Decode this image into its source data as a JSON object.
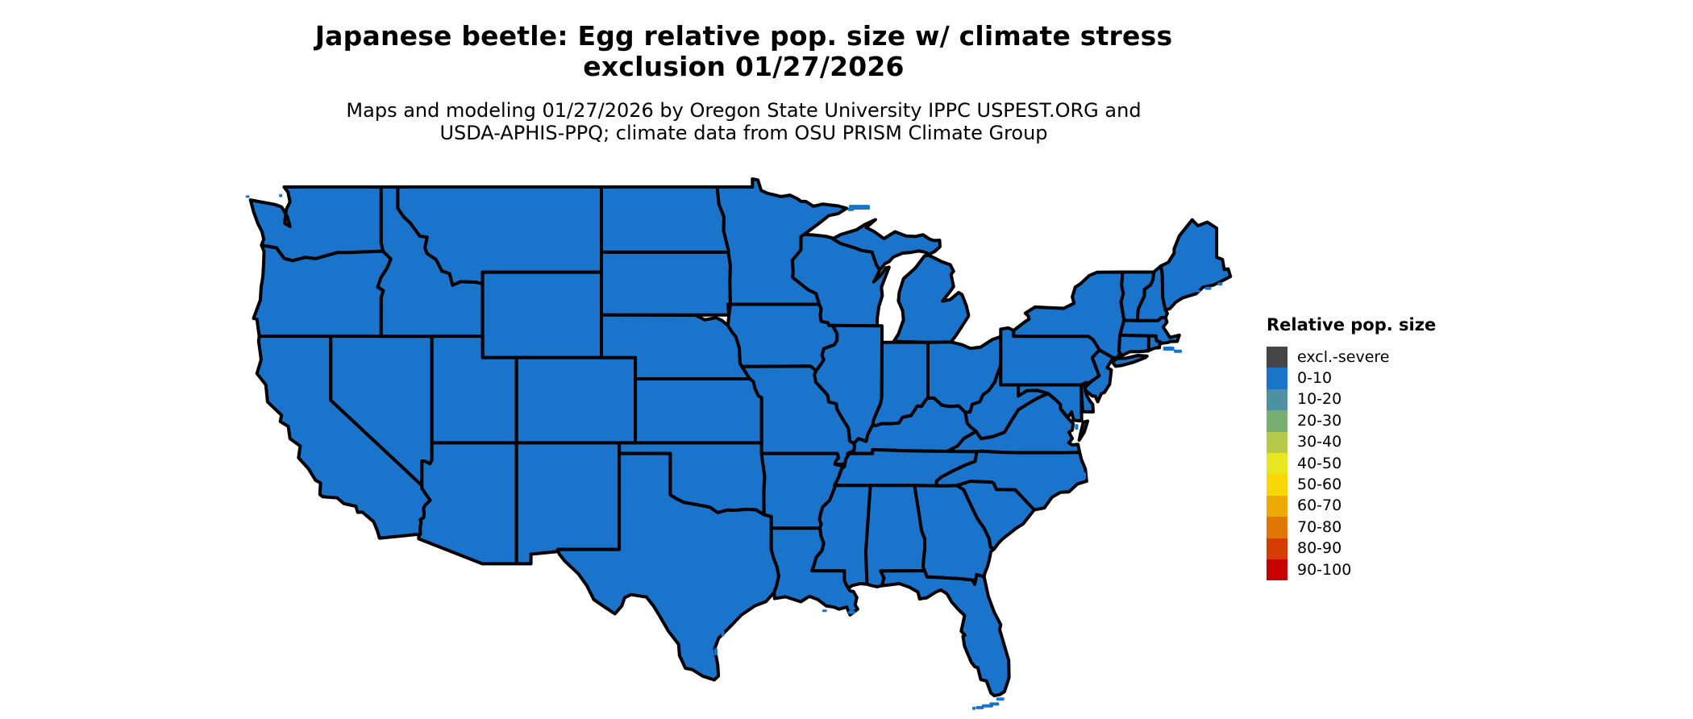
{
  "page": {
    "background": "#ffffff"
  },
  "title": {
    "line1": "Japanese beetle: Egg relative pop. size w/ climate stress",
    "line2": "exclusion 01/27/2026"
  },
  "subtitle": {
    "line1": "Maps and modeling 01/27/2026 by Oregon State University IPPC USPEST.ORG and",
    "line2": "USDA-APHIS-PPQ; climate data from OSU PRISM Climate Group"
  },
  "legend": {
    "title": "Relative pop. size",
    "items": [
      {
        "label": "excl.-severe",
        "color": "#454548"
      },
      {
        "label": "0-10",
        "color": "#1b74cc"
      },
      {
        "label": "10-20",
        "color": "#4e91a0"
      },
      {
        "label": "20-30",
        "color": "#79ae71"
      },
      {
        "label": "30-40",
        "color": "#b6c94a"
      },
      {
        "label": "40-50",
        "color": "#e6e71e"
      },
      {
        "label": "50-60",
        "color": "#f8d703"
      },
      {
        "label": "60-70",
        "color": "#eda904"
      },
      {
        "label": "70-80",
        "color": "#e07800"
      },
      {
        "label": "80-90",
        "color": "#d43d00"
      },
      {
        "label": "90-100",
        "color": "#c80000"
      }
    ]
  },
  "map": {
    "border_color": "#000000",
    "water_color": "#ffffff",
    "uniform_value": "0-10"
  },
  "chart_data": {
    "type": "choropleth_map",
    "region": "Contiguous United States",
    "title": "Japanese beetle: Egg relative pop. size w/ climate stress exclusion 01/27/2026",
    "legend_title": "Relative pop. size",
    "categories": [
      "excl.-severe",
      "0-10",
      "10-20",
      "20-30",
      "30-40",
      "40-50",
      "50-60",
      "60-70",
      "70-80",
      "80-90",
      "90-100"
    ],
    "palette": [
      "#454548",
      "#1b74cc",
      "#4e91a0",
      "#79ae71",
      "#b6c94a",
      "#e6e71e",
      "#f8d703",
      "#eda904",
      "#e07800",
      "#d43d00",
      "#c80000"
    ],
    "values": {
      "WA": "0-10",
      "OR": "0-10",
      "CA": "0-10",
      "NV": "0-10",
      "ID": "0-10",
      "MT": "0-10",
      "WY": "0-10",
      "UT": "0-10",
      "CO": "0-10",
      "AZ": "0-10",
      "NM": "0-10",
      "ND": "0-10",
      "SD": "0-10",
      "NE": "0-10",
      "KS": "0-10",
      "OK": "0-10",
      "TX": "0-10",
      "MN": "0-10",
      "IA": "0-10",
      "MO": "0-10",
      "AR": "0-10",
      "LA": "0-10",
      "WI": "0-10",
      "IL": "0-10",
      "IN": "0-10",
      "OH": "0-10",
      "MI": "0-10",
      "KY": "0-10",
      "TN": "0-10",
      "MS": "0-10",
      "AL": "0-10",
      "GA": "0-10",
      "FL": "0-10",
      "VA": "0-10",
      "WV": "0-10",
      "MD": "0-10",
      "DE": "0-10",
      "PA": "0-10",
      "NJ": "0-10",
      "NY": "0-10",
      "CT": "0-10",
      "RI": "0-10",
      "MA": "0-10",
      "VT": "0-10",
      "NH": "0-10",
      "ME": "0-10",
      "NC": "0-10",
      "SC": "0-10"
    }
  }
}
